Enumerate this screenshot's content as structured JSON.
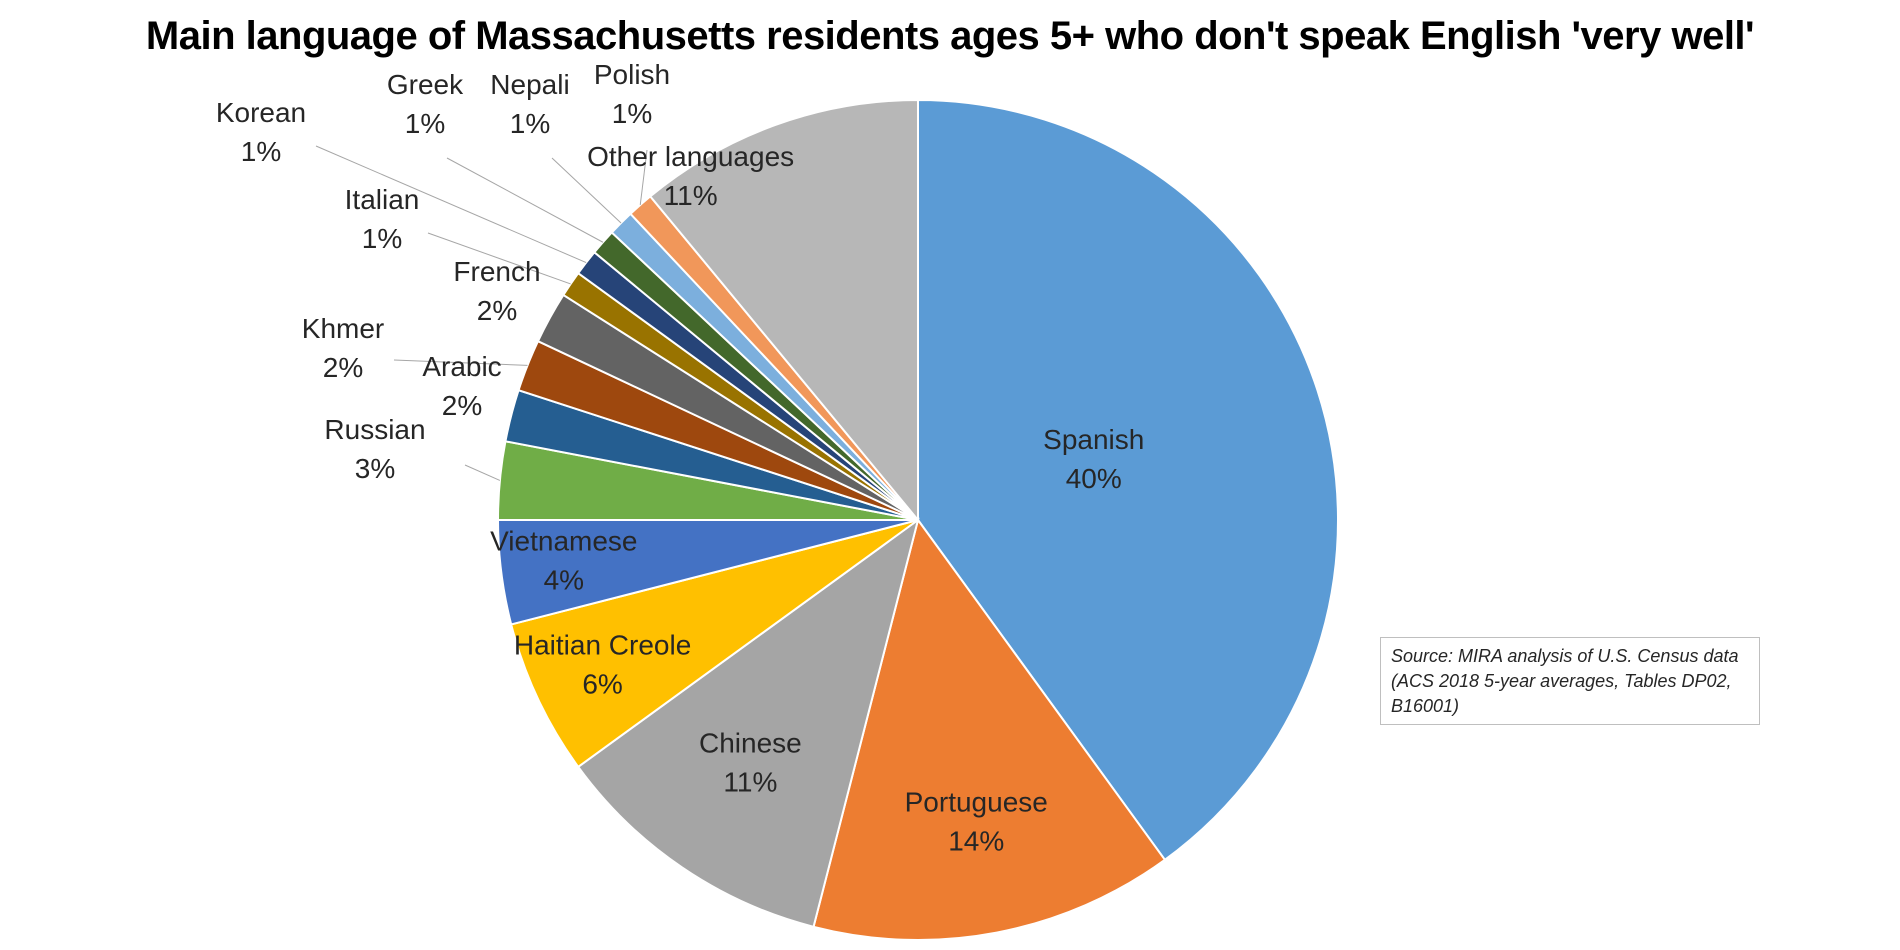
{
  "chart_data": {
    "type": "pie",
    "title": "Main language of Massachusetts residents ages 5+ who don't speak English 'very well'",
    "slices": [
      {
        "name": "Spanish",
        "value": 40,
        "label": "40%",
        "color": "#5b9bd5"
      },
      {
        "name": "Portuguese",
        "value": 14,
        "label": "14%",
        "color": "#ed7d31"
      },
      {
        "name": "Chinese",
        "value": 11,
        "label": "11%",
        "color": "#a5a5a5"
      },
      {
        "name": "Haitian Creole",
        "value": 6,
        "label": "6%",
        "color": "#ffc000"
      },
      {
        "name": "Vietnamese",
        "value": 4,
        "label": "4%",
        "color": "#4472c4"
      },
      {
        "name": "Russian",
        "value": 3,
        "label": "3%",
        "color": "#70ad47"
      },
      {
        "name": "Arabic",
        "value": 2,
        "label": "2%",
        "color": "#255e91"
      },
      {
        "name": "Khmer",
        "value": 2,
        "label": "2%",
        "color": "#9e480e"
      },
      {
        "name": "French",
        "value": 2,
        "label": "2%",
        "color": "#636363"
      },
      {
        "name": "Italian",
        "value": 1,
        "label": "1%",
        "color": "#997300"
      },
      {
        "name": "Korean",
        "value": 1,
        "label": "1%",
        "color": "#264478"
      },
      {
        "name": "Greek",
        "value": 1,
        "label": "1%",
        "color": "#43682b"
      },
      {
        "name": "Nepali",
        "value": 1,
        "label": "1%",
        "color": "#7cafdd"
      },
      {
        "name": "Polish",
        "value": 1,
        "label": "1%",
        "color": "#f1975a"
      },
      {
        "name": "Other languages",
        "value": 11,
        "label": "11%",
        "color": "#b7b7b7"
      }
    ],
    "source": "Source: MIRA analysis of U.S. Census data (ACS 2018 5-year averages, Tables DP02, B16001)"
  }
}
